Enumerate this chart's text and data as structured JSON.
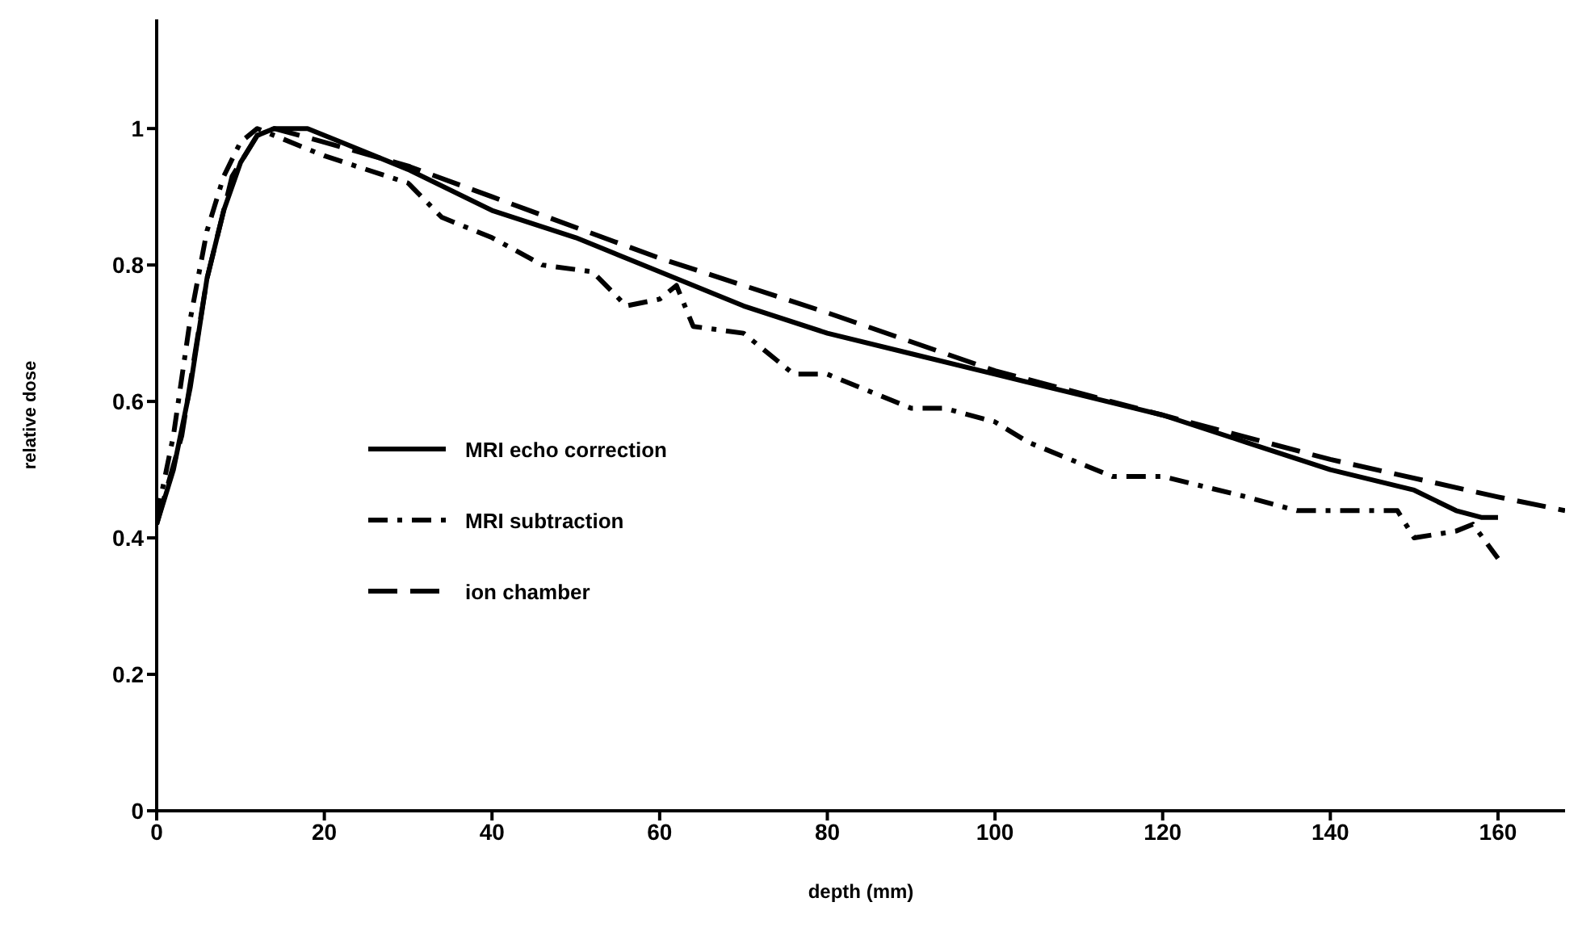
{
  "chart_data": {
    "type": "line",
    "xlabel": "depth (mm)",
    "ylabel": "relative dose",
    "xlim": [
      0,
      168
    ],
    "xticks": [
      0,
      20,
      40,
      60,
      80,
      100,
      120,
      140,
      160
    ],
    "ylim": [
      0,
      1.16
    ],
    "yticks": [
      0,
      0.2,
      0.4,
      0.6,
      0.8,
      1
    ],
    "grid": false,
    "legend": "left",
    "marker": "none",
    "series": [
      {
        "name": "MRI echo correction",
        "color": "#000000",
        "line_style": "solid",
        "x": [
          0,
          2,
          4,
          6,
          8,
          10,
          12,
          14,
          18,
          22,
          30,
          40,
          50,
          60,
          70,
          80,
          90,
          100,
          110,
          120,
          130,
          140,
          150,
          155,
          158,
          160
        ],
        "values": [
          0.42,
          0.5,
          0.62,
          0.78,
          0.88,
          0.95,
          0.99,
          1.0,
          1.0,
          0.98,
          0.94,
          0.88,
          0.84,
          0.79,
          0.74,
          0.7,
          0.67,
          0.64,
          0.61,
          0.58,
          0.54,
          0.5,
          0.47,
          0.44,
          0.43,
          0.43
        ]
      },
      {
        "name": "MRI subtraction",
        "color": "#000000",
        "line_style": "dashdot",
        "x": [
          0,
          2,
          4,
          6,
          8,
          10,
          12,
          14,
          20,
          30,
          34,
          40,
          46,
          52,
          56,
          60,
          62,
          64,
          70,
          76,
          80,
          86,
          90,
          94,
          100,
          104,
          110,
          114,
          120,
          130,
          136,
          140,
          148,
          150,
          155,
          157,
          160
        ],
        "values": [
          0.43,
          0.55,
          0.72,
          0.85,
          0.93,
          0.98,
          1.0,
          0.99,
          0.96,
          0.92,
          0.87,
          0.84,
          0.8,
          0.79,
          0.74,
          0.75,
          0.77,
          0.71,
          0.7,
          0.64,
          0.64,
          0.61,
          0.59,
          0.59,
          0.57,
          0.54,
          0.51,
          0.49,
          0.49,
          0.46,
          0.44,
          0.44,
          0.44,
          0.4,
          0.41,
          0.42,
          0.37
        ]
      },
      {
        "name": "ion chamber",
        "color": "#000000",
        "line_style": "dashed",
        "x": [
          0,
          3,
          6,
          9,
          12,
          14,
          20,
          30,
          40,
          60,
          80,
          100,
          120,
          140,
          160,
          168
        ],
        "values": [
          0.42,
          0.55,
          0.78,
          0.93,
          0.99,
          1.0,
          0.98,
          0.945,
          0.9,
          0.81,
          0.73,
          0.645,
          0.58,
          0.515,
          0.46,
          0.44
        ]
      }
    ]
  }
}
